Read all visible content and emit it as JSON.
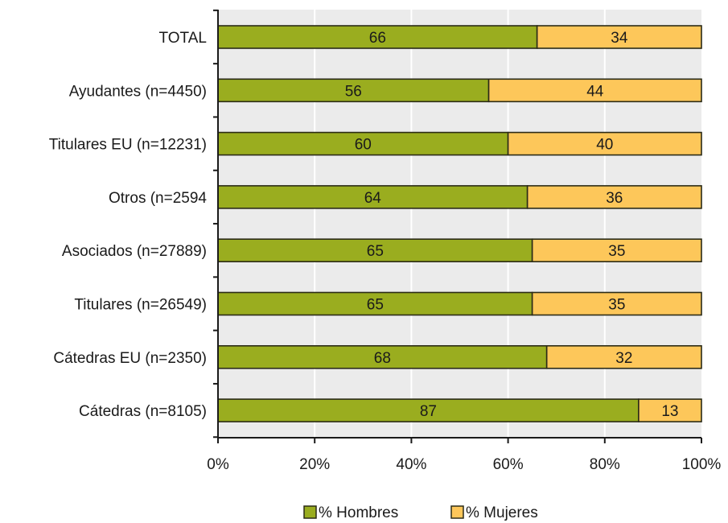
{
  "chart_data": {
    "type": "bar",
    "orientation": "horizontal",
    "stacked": true,
    "categories": [
      "TOTAL",
      "Ayudantes (n=4450)",
      "Titulares EU (n=12231)",
      "Otros (n=2594",
      "Asociados (n=27889)",
      "Titulares (n=26549)",
      "Cátedras EU (n=2350)",
      "Cátedras (n=8105)"
    ],
    "series": [
      {
        "name": "% Hombres",
        "color": "#9aad1f",
        "values": [
          66,
          56,
          60,
          64,
          65,
          65,
          68,
          87
        ]
      },
      {
        "name": "% Mujeres",
        "color": "#fdc75a",
        "values": [
          34,
          44,
          40,
          36,
          35,
          35,
          32,
          13
        ]
      }
    ],
    "xlim": [
      0,
      100
    ],
    "xticks": [
      "0%",
      "20%",
      "40%",
      "60%",
      "80%",
      "100%"
    ],
    "grid": true,
    "plot_background": "#ebebeb",
    "gridline_color": "#ffffff",
    "legend_position": "bottom",
    "title": "",
    "xlabel": "",
    "ylabel": ""
  }
}
